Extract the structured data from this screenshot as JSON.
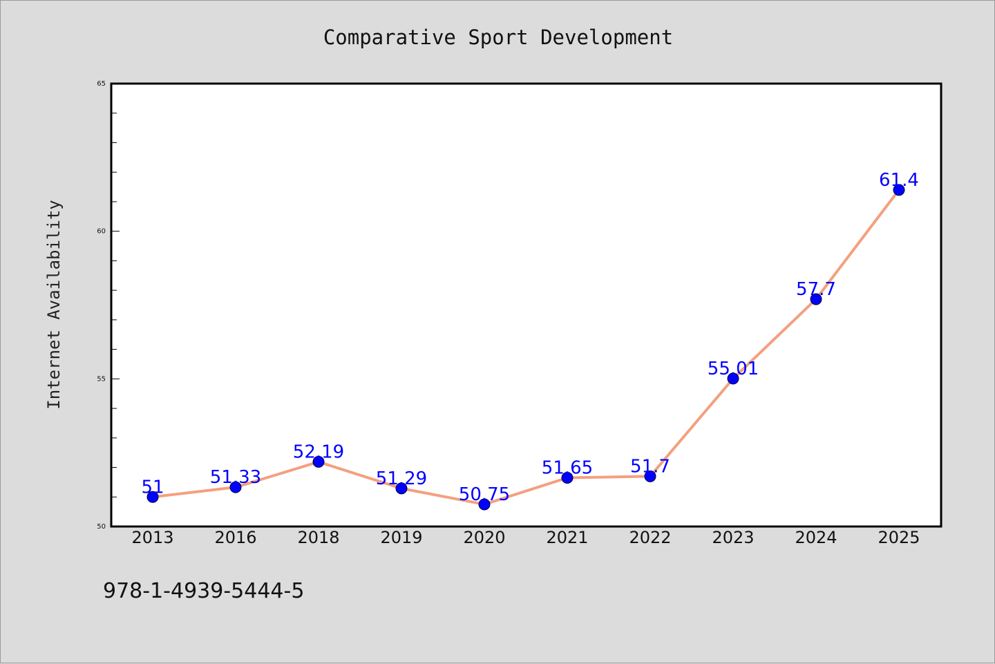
{
  "chart_data": {
    "type": "line",
    "title": "Comparative Sport Development",
    "xlabel": "",
    "ylabel": "Internet Availability",
    "categories": [
      "2013",
      "2016",
      "2018",
      "2019",
      "2020",
      "2021",
      "2022",
      "2023",
      "2024",
      "2025"
    ],
    "series": [
      {
        "values": [
          51,
          51.33,
          52.19,
          51.29,
          50.75,
          51.65,
          51.7,
          55.01,
          57.7,
          61.4
        ],
        "labels": [
          "51",
          "51.33",
          "52.19",
          "51.29",
          "50.75",
          "51.65",
          "51.7",
          "55.01",
          "57.7",
          "61.4"
        ],
        "line_color": "#f4a07f",
        "marker_color": "#0000ff"
      }
    ],
    "ylim": [
      50,
      65
    ],
    "yticks": [
      "50",
      "55",
      "60",
      "65"
    ],
    "grid": false,
    "legend": "none"
  },
  "footer": {
    "isbn": "978-1-4939-5444-5"
  },
  "colors": {
    "background": "#dcdcdc",
    "plot_background": "#ffffff",
    "label_color": "#0000ff"
  }
}
